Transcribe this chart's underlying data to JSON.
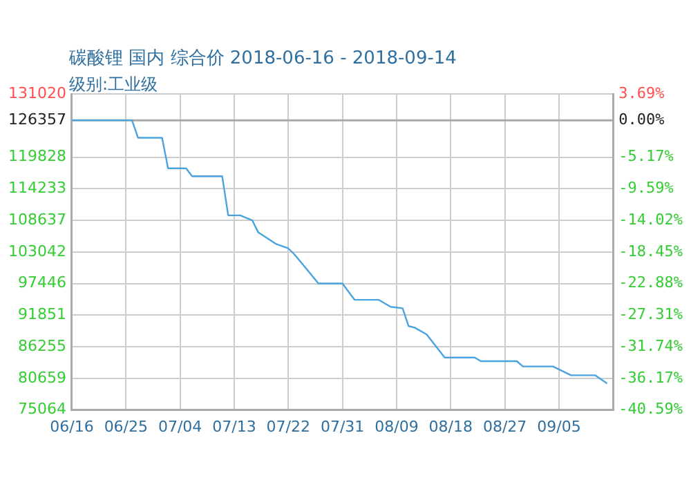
{
  "chart_data": {
    "type": "line",
    "title": "碳酸锂 国内 综合价 2018-06-16 - 2018-09-14",
    "subtitle": "级别:工业级",
    "x": [
      "2018-06-16",
      "2018-06-26",
      "2018-06-27",
      "2018-07-01",
      "2018-07-02",
      "2018-07-05",
      "2018-07-06",
      "2018-07-11",
      "2018-07-12",
      "2018-07-14",
      "2018-07-16",
      "2018-07-17",
      "2018-07-20",
      "2018-07-22",
      "2018-07-23",
      "2018-07-25",
      "2018-07-27",
      "2018-07-31",
      "2018-08-02",
      "2018-08-06",
      "2018-08-08",
      "2018-08-10",
      "2018-08-11",
      "2018-08-12",
      "2018-08-14",
      "2018-08-17",
      "2018-08-22",
      "2018-08-23",
      "2018-08-29",
      "2018-08-30",
      "2018-09-04",
      "2018-09-07",
      "2018-09-11",
      "2018-09-13"
    ],
    "series": [
      {
        "color": "#4aa3df",
        "values": [
          126357,
          126357,
          123260,
          123260,
          117850,
          117850,
          116430,
          116430,
          109510,
          109510,
          108640,
          106490,
          104430,
          103660,
          102620,
          100040,
          97450,
          97450,
          94570,
          94570,
          93330,
          93070,
          89900,
          89640,
          88430,
          84330,
          84330,
          83700,
          83700,
          82760,
          82760,
          81210,
          81210,
          79740
        ]
      }
    ],
    "xlim": [
      "2018-06-16",
      "2018-09-14"
    ],
    "xticks": [
      {
        "value": "2018-06-16",
        "label": "06/16"
      },
      {
        "value": "2018-06-25",
        "label": "06/25"
      },
      {
        "value": "2018-07-04",
        "label": "07/04"
      },
      {
        "value": "2018-07-13",
        "label": "07/13"
      },
      {
        "value": "2018-07-22",
        "label": "07/22"
      },
      {
        "value": "2018-07-31",
        "label": "07/31"
      },
      {
        "value": "2018-08-09",
        "label": "08/09"
      },
      {
        "value": "2018-08-18",
        "label": "08/18"
      },
      {
        "value": "2018-08-27",
        "label": "08/27"
      },
      {
        "value": "2018-09-05",
        "label": "09/05"
      }
    ],
    "ylim": [
      75064,
      131020
    ],
    "yticks": [
      131020,
      126357,
      119828,
      114233,
      108637,
      103042,
      97446,
      91851,
      86255,
      80659,
      75064
    ],
    "y2lim": [
      -40.59,
      3.69
    ],
    "y2ticks": [
      {
        "value": 3.69,
        "label": "3.69%"
      },
      {
        "value": 0,
        "label": "0.00%"
      },
      {
        "value": -5.17,
        "label": "-5.17%"
      },
      {
        "value": -9.59,
        "label": "-9.59%"
      },
      {
        "value": -14.02,
        "label": "-14.02%"
      },
      {
        "value": -18.45,
        "label": "-18.45%"
      },
      {
        "value": -22.88,
        "label": "-22.88%"
      },
      {
        "value": -27.31,
        "label": "-27.31%"
      },
      {
        "value": -31.74,
        "label": "-31.74%"
      },
      {
        "value": -36.17,
        "label": "-36.17%"
      },
      {
        "value": -40.59,
        "label": "-40.59%"
      }
    ],
    "ref_lines": [
      {
        "axis": "y",
        "value": 126357,
        "color": "#aaaaaa"
      }
    ],
    "grid": true,
    "legend": false,
    "marker": "none",
    "line_style": "solid"
  }
}
